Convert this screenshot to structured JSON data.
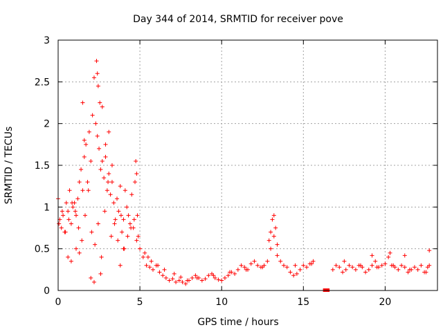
{
  "chart_data": {
    "type": "scatter",
    "title": "Day 344 of 2014, SRMTID for receiver pove",
    "xlabel": "GPS time / hours",
    "ylabel": "SRMTID / TECUs",
    "xlim": [
      0,
      23.2
    ],
    "ylim": [
      0,
      3
    ],
    "xticks": [
      0,
      5,
      10,
      15,
      20
    ],
    "xtick_labels": [
      "0",
      "5",
      "10",
      "15",
      "20"
    ],
    "yticks": [
      0,
      0.5,
      1,
      1.5,
      2,
      2.5,
      3
    ],
    "ytick_labels": [
      "0",
      "0.5",
      "1",
      "1.5",
      "2",
      "2.5",
      "3"
    ],
    "grid": true,
    "marker": "+",
    "color": "#ff0000",
    "gap_marker": {
      "x_start": 16.2,
      "x_end": 16.6,
      "y": 0
    },
    "series": [
      {
        "name": "SRMTID",
        "x": [
          0.0,
          0.1,
          0.2,
          0.3,
          0.4,
          0.5,
          0.6,
          0.7,
          0.8,
          0.9,
          1.0,
          1.1,
          1.2,
          1.3,
          1.4,
          1.5,
          1.6,
          1.7,
          1.8,
          1.9,
          2.0,
          2.1,
          2.2,
          2.3,
          2.4,
          2.5,
          2.6,
          2.7,
          2.8,
          2.9,
          3.0,
          3.1,
          3.2,
          3.3,
          3.4,
          3.5,
          3.6,
          3.7,
          3.8,
          3.9,
          4.0,
          4.1,
          4.2,
          4.3,
          4.4,
          4.5,
          4.6,
          4.7,
          4.8,
          4.9,
          5.0,
          5.2,
          5.4,
          5.6,
          5.8,
          6.0,
          6.2,
          6.4,
          6.6,
          6.8,
          7.0,
          7.2,
          7.4,
          7.6,
          7.8,
          8.0,
          8.2,
          8.4,
          8.6,
          8.8,
          9.0,
          9.2,
          9.4,
          9.6,
          9.8,
          10.0,
          10.2,
          10.4,
          10.6,
          10.8,
          11.0,
          11.2,
          11.4,
          11.6,
          11.8,
          12.0,
          12.2,
          12.4,
          12.6,
          12.8,
          13.0,
          13.2,
          13.4,
          13.6,
          13.8,
          14.0,
          14.2,
          14.4,
          14.6,
          14.8,
          15.0,
          15.2,
          15.4,
          15.6,
          16.8,
          17.0,
          17.2,
          17.4,
          17.6,
          17.8,
          18.0,
          18.2,
          18.4,
          18.6,
          18.8,
          19.0,
          19.2,
          19.4,
          19.6,
          19.8,
          20.0,
          20.2,
          20.4,
          20.6,
          20.8,
          21.0,
          21.2,
          21.4,
          21.6,
          21.8,
          22.0,
          22.2,
          22.4,
          22.6,
          22.7,
          0.05,
          0.25,
          0.45,
          0.65,
          0.85,
          1.05,
          1.25,
          1.45,
          1.65,
          1.85,
          2.05,
          2.25,
          2.45,
          2.65,
          2.85,
          3.05,
          3.25,
          3.45,
          3.65,
          3.85,
          4.05,
          4.25,
          4.45,
          4.65,
          4.85,
          2.35,
          2.4,
          2.45,
          2.55,
          1.5,
          1.6,
          2.7,
          2.9,
          3.1,
          3.3,
          4.75,
          4.8,
          0.6,
          0.8,
          1.1,
          1.3,
          2.0,
          2.2,
          2.6,
          3.8,
          4.0,
          13.1,
          13.2,
          13.3,
          13.0,
          12.9,
          13.4,
          19.2,
          20.3,
          21.2,
          22.7,
          5.3,
          5.5,
          5.7,
          6.1,
          6.5,
          7.1,
          7.5,
          7.9,
          8.5,
          9.5,
          10.5,
          11.5,
          12.5,
          14.5,
          15.5,
          17.5,
          18.5,
          19.5,
          20.5,
          21.5,
          22.5
        ],
        "y": [
          1.1,
          0.85,
          0.75,
          0.9,
          0.7,
          1.05,
          0.95,
          1.2,
          0.8,
          1.0,
          1.05,
          0.9,
          1.1,
          1.3,
          1.45,
          1.2,
          1.6,
          1.75,
          1.3,
          1.9,
          1.55,
          2.1,
          2.55,
          2.0,
          1.85,
          1.7,
          1.45,
          1.55,
          1.35,
          1.75,
          1.2,
          1.4,
          1.15,
          1.3,
          1.05,
          0.85,
          1.1,
          0.95,
          1.25,
          0.7,
          0.85,
          1.2,
          1.0,
          0.9,
          0.8,
          1.15,
          0.75,
          1.3,
          0.6,
          0.65,
          0.5,
          0.4,
          0.3,
          0.28,
          0.25,
          0.3,
          0.22,
          0.18,
          0.15,
          0.12,
          0.14,
          0.1,
          0.12,
          0.1,
          0.08,
          0.12,
          0.15,
          0.18,
          0.15,
          0.12,
          0.14,
          0.18,
          0.2,
          0.15,
          0.13,
          0.12,
          0.15,
          0.18,
          0.22,
          0.2,
          0.25,
          0.3,
          0.28,
          0.25,
          0.32,
          0.35,
          0.3,
          0.28,
          0.3,
          0.35,
          0.5,
          0.65,
          0.42,
          0.35,
          0.3,
          0.28,
          0.22,
          0.18,
          0.2,
          0.25,
          0.3,
          0.28,
          0.32,
          0.35,
          0.25,
          0.3,
          0.28,
          0.22,
          0.25,
          0.3,
          0.28,
          0.25,
          0.3,
          0.28,
          0.22,
          0.25,
          0.3,
          0.35,
          0.28,
          0.3,
          0.32,
          0.4,
          0.3,
          0.28,
          0.25,
          0.3,
          0.28,
          0.22,
          0.25,
          0.28,
          0.25,
          0.3,
          0.22,
          0.28,
          0.3,
          0.8,
          0.95,
          0.7,
          0.85,
          1.05,
          0.95,
          0.75,
          0.6,
          0.9,
          1.2,
          0.7,
          0.55,
          0.8,
          0.4,
          0.95,
          1.3,
          0.65,
          0.8,
          0.6,
          0.9,
          0.5,
          0.65,
          0.75,
          0.85,
          0.9,
          2.75,
          2.6,
          2.45,
          2.25,
          2.25,
          1.8,
          2.2,
          1.6,
          1.9,
          1.5,
          1.55,
          1.4,
          0.4,
          0.35,
          0.5,
          0.45,
          0.15,
          0.1,
          0.2,
          0.3,
          0.5,
          0.85,
          0.9,
          0.75,
          0.7,
          0.6,
          0.55,
          0.42,
          0.45,
          0.42,
          0.48,
          0.45,
          0.4,
          0.35,
          0.3,
          0.25,
          0.2,
          0.16,
          0.12,
          0.15,
          0.18,
          0.22,
          0.25,
          0.28,
          0.3,
          0.32,
          0.35,
          0.3,
          0.28,
          0.3,
          0.25,
          0.22
        ]
      }
    ]
  }
}
